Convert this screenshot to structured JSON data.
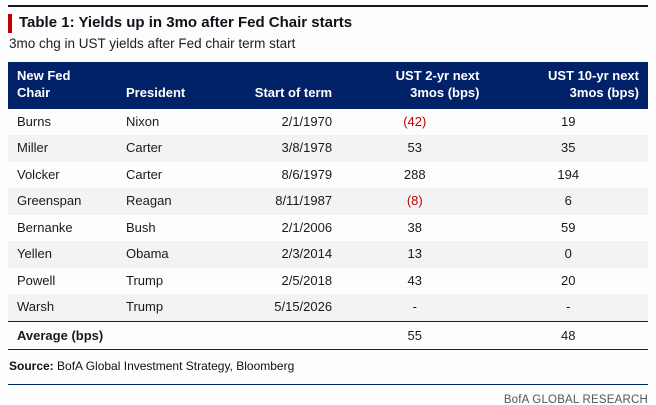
{
  "header": {
    "title": "Table 1: Yields up in 3mo after Fed Chair starts",
    "subtitle": "3mo chg in UST yields after Fed chair term start"
  },
  "chart_data": {
    "type": "table",
    "title": "Table 1: Yields up in 3mo after Fed Chair starts",
    "subtitle": "3mo chg in UST yields after Fed chair term start",
    "columns": [
      {
        "line1": "New Fed",
        "line2": "Chair"
      },
      {
        "line1": "",
        "line2": "President"
      },
      {
        "line1": "",
        "line2": "Start of term"
      },
      {
        "line1": "UST 2-yr next",
        "line2": "3mos (bps)"
      },
      {
        "line1": "UST 10-yr next",
        "line2": "3mos (bps)"
      }
    ],
    "rows": [
      {
        "chair": "Burns",
        "president": "Nixon",
        "start_of_term": "2/1/1970",
        "ust2": "(42)",
        "ust10": "19"
      },
      {
        "chair": "Miller",
        "president": "Carter",
        "start_of_term": "3/8/1978",
        "ust2": "53",
        "ust10": "35"
      },
      {
        "chair": "Volcker",
        "president": "Carter",
        "start_of_term": "8/6/1979",
        "ust2": "288",
        "ust10": "194"
      },
      {
        "chair": "Greenspan",
        "president": "Reagan",
        "start_of_term": "8/11/1987",
        "ust2": "(8)",
        "ust10": "6"
      },
      {
        "chair": "Bernanke",
        "president": "Bush",
        "start_of_term": "2/1/2006",
        "ust2": "38",
        "ust10": "59"
      },
      {
        "chair": "Yellen",
        "president": "Obama",
        "start_of_term": "2/3/2014",
        "ust2": "13",
        "ust10": "0"
      },
      {
        "chair": "Powell",
        "president": "Trump",
        "start_of_term": "2/5/2018",
        "ust2": "43",
        "ust10": "20"
      },
      {
        "chair": "Warsh",
        "president": "Trump",
        "start_of_term": "5/15/2026",
        "ust2": "-",
        "ust10": "-"
      }
    ],
    "average_row": {
      "label": "Average (bps)",
      "ust2": "55",
      "ust10": "48"
    },
    "negative_format": "values in parentheses shown in red"
  },
  "footer": {
    "source_label": "Source:",
    "source_text": " BofA Global Investment Strategy, Bloomberg",
    "branding": "BofA GLOBAL RESEARCH"
  },
  "colors": {
    "navy": "#012169",
    "red": "#c00000",
    "row_stripe": "#f3f3f3",
    "header_text": "#ffffff"
  }
}
